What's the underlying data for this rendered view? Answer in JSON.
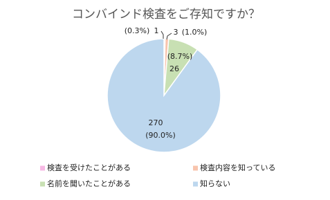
{
  "chart_data": {
    "type": "pie",
    "title": "コンバインド検査をご存知ですか？",
    "categories": [
      "検査を受けたことがある",
      "検査内容を知っている",
      "名前を聞いたことがある",
      "知らない"
    ],
    "values": [
      1,
      3,
      26,
      270
    ],
    "percent_labels": [
      "(0.3%)",
      "(1.0%)",
      "(8.7%)",
      "(90.0%)"
    ],
    "colors": [
      "#f7b9e4",
      "#f8c4ad",
      "#c8e0b3",
      "#bdd7ee"
    ],
    "legend": "bottom"
  }
}
